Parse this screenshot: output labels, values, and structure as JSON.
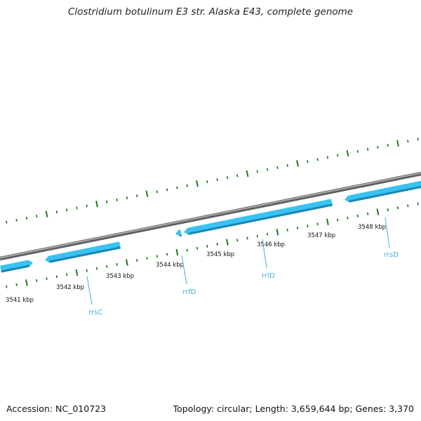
{
  "title": "Clostridium botulinum E3 str. Alaska E43, complete genome",
  "footer": {
    "accession": "Accession: NC_010723",
    "topology": "Topology: circular; Length: 3,659,644 bp; Genes: 3,370"
  },
  "colors": {
    "backbone": "#7a7a7a",
    "gene_fill": "#39c2f2",
    "gene_shade": "#1a86b4",
    "tick": "#1e7a1e",
    "gene_label": "#3fb2d6"
  },
  "kbp_labels": [
    "3541 kbp",
    "3542 kbp",
    "3543 kbp",
    "3544 kbp",
    "3545 kbp",
    "3546 kbp",
    "3547 kbp",
    "3548 kbp"
  ],
  "genes": [
    {
      "label": ""
    },
    {
      "label": "rrsC"
    },
    {
      "label": "rrfD"
    },
    {
      "label": "rrlD"
    },
    {
      "label": "rrsD"
    }
  ]
}
